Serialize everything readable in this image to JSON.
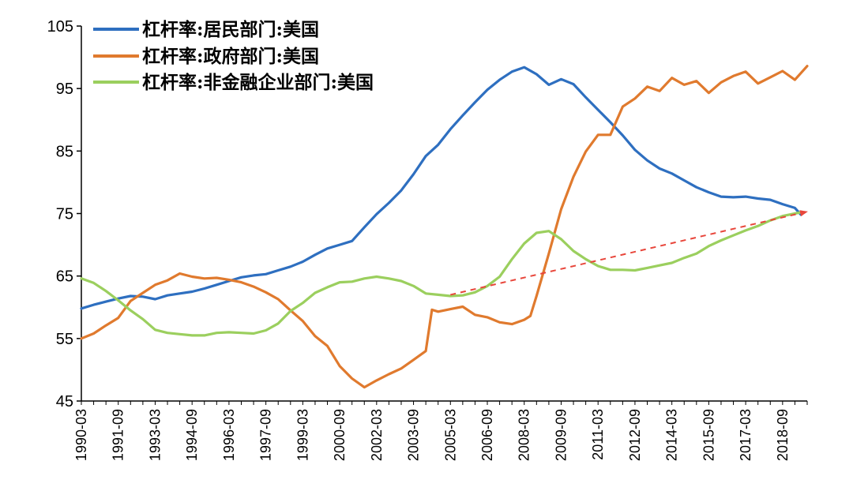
{
  "chart_data": {
    "type": "line",
    "title": "",
    "xlabel": "",
    "ylabel": "",
    "ylim": [
      45,
      105
    ],
    "yticks": [
      45,
      55,
      65,
      75,
      85,
      95,
      105
    ],
    "grid": false,
    "legend_position": "top-left",
    "x_tick_labels": [
      "1990-03",
      "1991-09",
      "1993-03",
      "1994-09",
      "1996-03",
      "1997-09",
      "1999-03",
      "2000-09",
      "2002-03",
      "2003-09",
      "2005-03",
      "2006-09",
      "2008-03",
      "2009-09",
      "2011-03",
      "2012-09",
      "2014-03",
      "2015-09",
      "2017-03",
      "2018-09"
    ],
    "series": [
      {
        "name": "杠杆率:居民部门:美国",
        "color": "#2e6fc0",
        "points": [
          [
            "1990-03",
            59.8
          ],
          [
            "1990-09",
            60.4
          ],
          [
            "1991-03",
            60.9
          ],
          [
            "1991-09",
            61.4
          ],
          [
            "1992-03",
            61.8
          ],
          [
            "1992-09",
            61.7
          ],
          [
            "1993-03",
            61.3
          ],
          [
            "1993-09",
            61.9
          ],
          [
            "1994-03",
            62.2
          ],
          [
            "1994-09",
            62.5
          ],
          [
            "1995-03",
            63.0
          ],
          [
            "1995-09",
            63.6
          ],
          [
            "1996-03",
            64.2
          ],
          [
            "1996-09",
            64.8
          ],
          [
            "1997-03",
            65.1
          ],
          [
            "1997-09",
            65.3
          ],
          [
            "1998-03",
            65.9
          ],
          [
            "1998-09",
            66.5
          ],
          [
            "1999-03",
            67.3
          ],
          [
            "1999-09",
            68.4
          ],
          [
            "2000-03",
            69.4
          ],
          [
            "2000-09",
            70.0
          ],
          [
            "2001-03",
            70.6
          ],
          [
            "2001-09",
            72.8
          ],
          [
            "2002-03",
            74.9
          ],
          [
            "2002-09",
            76.7
          ],
          [
            "2003-03",
            78.7
          ],
          [
            "2003-09",
            81.3
          ],
          [
            "2004-03",
            84.2
          ],
          [
            "2004-09",
            86.0
          ],
          [
            "2005-03",
            88.5
          ],
          [
            "2005-09",
            90.7
          ],
          [
            "2006-03",
            92.8
          ],
          [
            "2006-09",
            94.8
          ],
          [
            "2007-03",
            96.4
          ],
          [
            "2007-09",
            97.7
          ],
          [
            "2008-03",
            98.4
          ],
          [
            "2008-09",
            97.3
          ],
          [
            "2009-03",
            95.6
          ],
          [
            "2009-09",
            96.5
          ],
          [
            "2010-03",
            95.7
          ],
          [
            "2010-09",
            93.6
          ],
          [
            "2011-03",
            91.6
          ],
          [
            "2011-09",
            89.6
          ],
          [
            "2012-03",
            87.5
          ],
          [
            "2012-09",
            85.2
          ],
          [
            "2013-03",
            83.5
          ],
          [
            "2013-09",
            82.2
          ],
          [
            "2014-03",
            81.4
          ],
          [
            "2014-09",
            80.3
          ],
          [
            "2015-03",
            79.2
          ],
          [
            "2015-09",
            78.4
          ],
          [
            "2016-03",
            77.7
          ],
          [
            "2016-09",
            77.6
          ],
          [
            "2017-03",
            77.7
          ],
          [
            "2017-09",
            77.4
          ],
          [
            "2018-03",
            77.2
          ],
          [
            "2018-09",
            76.5
          ],
          [
            "2019-03",
            75.9
          ],
          [
            "2019-06",
            74.8
          ]
        ]
      },
      {
        "name": "杠杆率:政府部门:美国",
        "color": "#e07a2e",
        "points": [
          [
            "1990-03",
            55.0
          ],
          [
            "1990-09",
            55.8
          ],
          [
            "1991-03",
            57.1
          ],
          [
            "1991-09",
            58.3
          ],
          [
            "1992-03",
            61.0
          ],
          [
            "1992-09",
            62.3
          ],
          [
            "1993-03",
            63.6
          ],
          [
            "1993-09",
            64.3
          ],
          [
            "1994-03",
            65.4
          ],
          [
            "1994-09",
            64.9
          ],
          [
            "1995-03",
            64.6
          ],
          [
            "1995-09",
            64.7
          ],
          [
            "1996-03",
            64.4
          ],
          [
            "1996-09",
            64.0
          ],
          [
            "1997-03",
            63.3
          ],
          [
            "1997-09",
            62.4
          ],
          [
            "1998-03",
            61.3
          ],
          [
            "1998-09",
            59.5
          ],
          [
            "1999-03",
            57.8
          ],
          [
            "1999-09",
            55.4
          ],
          [
            "2000-03",
            53.8
          ],
          [
            "2000-09",
            50.6
          ],
          [
            "2001-03",
            48.6
          ],
          [
            "2001-09",
            47.2
          ],
          [
            "2002-03",
            48.3
          ],
          [
            "2002-09",
            49.3
          ],
          [
            "2003-03",
            50.2
          ],
          [
            "2003-09",
            51.6
          ],
          [
            "2004-03",
            53.0
          ],
          [
            "2004-06",
            59.6
          ],
          [
            "2004-09",
            59.3
          ],
          [
            "2005-03",
            59.7
          ],
          [
            "2005-09",
            60.1
          ],
          [
            "2006-03",
            58.8
          ],
          [
            "2006-09",
            58.4
          ],
          [
            "2007-03",
            57.6
          ],
          [
            "2007-09",
            57.3
          ],
          [
            "2008-03",
            58.0
          ],
          [
            "2008-06",
            58.6
          ],
          [
            "2008-09",
            61.8
          ],
          [
            "2009-03",
            68.6
          ],
          [
            "2009-09",
            75.7
          ],
          [
            "2010-03",
            80.9
          ],
          [
            "2010-09",
            84.9
          ],
          [
            "2011-03",
            87.6
          ],
          [
            "2011-09",
            87.6
          ],
          [
            "2012-03",
            92.1
          ],
          [
            "2012-09",
            93.4
          ],
          [
            "2013-03",
            95.3
          ],
          [
            "2013-09",
            94.6
          ],
          [
            "2014-03",
            96.7
          ],
          [
            "2014-09",
            95.6
          ],
          [
            "2015-03",
            96.2
          ],
          [
            "2015-09",
            94.3
          ],
          [
            "2016-03",
            96.0
          ],
          [
            "2016-09",
            97.0
          ],
          [
            "2017-03",
            97.7
          ],
          [
            "2017-09",
            95.8
          ],
          [
            "2018-03",
            96.8
          ],
          [
            "2018-09",
            97.8
          ],
          [
            "2019-03",
            96.4
          ],
          [
            "2019-09",
            98.6
          ]
        ]
      },
      {
        "name": "杠杆率:非金融企业部门:美国",
        "color": "#9bcf5e",
        "points": [
          [
            "1990-03",
            64.6
          ],
          [
            "1990-09",
            63.9
          ],
          [
            "1991-03",
            62.6
          ],
          [
            "1991-09",
            61.1
          ],
          [
            "1992-03",
            59.5
          ],
          [
            "1992-09",
            58.1
          ],
          [
            "1993-03",
            56.4
          ],
          [
            "1993-09",
            55.9
          ],
          [
            "1994-03",
            55.7
          ],
          [
            "1994-09",
            55.5
          ],
          [
            "1995-03",
            55.5
          ],
          [
            "1995-09",
            55.9
          ],
          [
            "1996-03",
            56.0
          ],
          [
            "1996-09",
            55.9
          ],
          [
            "1997-03",
            55.8
          ],
          [
            "1997-09",
            56.3
          ],
          [
            "1998-03",
            57.4
          ],
          [
            "1998-09",
            59.4
          ],
          [
            "1999-03",
            60.7
          ],
          [
            "1999-09",
            62.3
          ],
          [
            "2000-03",
            63.2
          ],
          [
            "2000-09",
            64.0
          ],
          [
            "2001-03",
            64.1
          ],
          [
            "2001-09",
            64.6
          ],
          [
            "2002-03",
            64.9
          ],
          [
            "2002-09",
            64.6
          ],
          [
            "2003-03",
            64.2
          ],
          [
            "2003-09",
            63.4
          ],
          [
            "2004-03",
            62.2
          ],
          [
            "2004-09",
            62.0
          ],
          [
            "2005-03",
            61.8
          ],
          [
            "2005-09",
            61.9
          ],
          [
            "2006-03",
            62.4
          ],
          [
            "2006-09",
            63.4
          ],
          [
            "2007-03",
            64.9
          ],
          [
            "2007-09",
            67.7
          ],
          [
            "2008-03",
            70.2
          ],
          [
            "2008-09",
            71.9
          ],
          [
            "2009-03",
            72.2
          ],
          [
            "2009-09",
            70.9
          ],
          [
            "2010-03",
            69.0
          ],
          [
            "2010-09",
            67.7
          ],
          [
            "2011-03",
            66.6
          ],
          [
            "2011-09",
            66.0
          ],
          [
            "2012-03",
            66.0
          ],
          [
            "2012-09",
            65.9
          ],
          [
            "2013-03",
            66.3
          ],
          [
            "2013-09",
            66.7
          ],
          [
            "2014-03",
            67.1
          ],
          [
            "2014-09",
            67.9
          ],
          [
            "2015-03",
            68.6
          ],
          [
            "2015-09",
            69.8
          ],
          [
            "2016-03",
            70.7
          ],
          [
            "2016-09",
            71.5
          ],
          [
            "2017-03",
            72.3
          ],
          [
            "2017-09",
            73.0
          ],
          [
            "2018-03",
            73.9
          ],
          [
            "2018-09",
            74.6
          ],
          [
            "2019-03",
            75.0
          ],
          [
            "2019-06",
            75.2
          ]
        ]
      }
    ],
    "annotation": {
      "type": "trend-arrow",
      "style": "dashed",
      "color": "#e8463b",
      "from": [
        "2005-03",
        62.0
      ],
      "to": [
        "2019-09",
        75.3
      ]
    }
  }
}
